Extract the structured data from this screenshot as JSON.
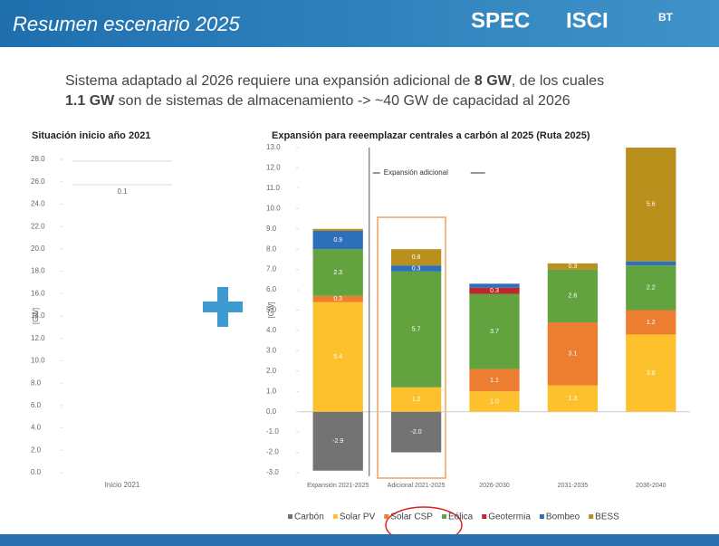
{
  "slide": {
    "title": "Resumen escenario 2025",
    "logos": [
      "SPEC",
      "ISCI",
      "BT"
    ],
    "text_1a": "Sistema adaptado al 2026 requiere una expansión adicional de ",
    "text_1b": "8 GW",
    "text_1c": ", de los cuales",
    "text_2a": "1.1 GW",
    "text_2b": " son de sistemas de almacenamiento -> ~40 GW de capacidad al 2026"
  },
  "chart_data": [
    {
      "type": "bar",
      "title": "Situación inicio año 2021",
      "ylabel": "[GW]",
      "categories": [
        "Inicio 2021"
      ],
      "annotation": "0.1",
      "ylim": [
        0,
        28
      ],
      "yticks": [
        {
          "value": 0,
          "label": "0.0"
        },
        {
          "value": 2,
          "label": "2.0"
        },
        {
          "value": 4,
          "label": "4.0"
        },
        {
          "value": 6,
          "label": "6.0"
        },
        {
          "value": 8,
          "label": "8.0"
        },
        {
          "value": 10,
          "label": "10.0"
        },
        {
          "value": 12,
          "label": "12.0"
        },
        {
          "value": 14,
          "label": "14.0"
        },
        {
          "value": 16,
          "label": "16.0"
        },
        {
          "value": 18,
          "label": "18.0"
        },
        {
          "value": 20,
          "label": "20.0"
        },
        {
          "value": 22,
          "label": "22.0"
        },
        {
          "value": 24,
          "label": "24.0"
        },
        {
          "value": 26,
          "label": "26.0"
        },
        {
          "value": 28,
          "label": "28.0"
        }
      ],
      "grid": false
    },
    {
      "type": "stacked_bar",
      "title": "Expansión para reeemplazar centrales a carbón al 2025 (Ruta 2025)",
      "ylabel": "[GW]",
      "annotation": "Expansión adicional",
      "categories": [
        "Expansión 2021-2025",
        "Adicional 2021-2025",
        "2026-2030",
        "2031-2035",
        "2036-2040"
      ],
      "series": [
        {
          "name": "Carbón",
          "color": "#737373",
          "values": [
            -2.9,
            -2.0,
            0,
            0,
            0
          ],
          "value_labels": [
            "-2.9",
            "-2.0",
            null,
            null,
            null
          ]
        },
        {
          "name": "Solar PV",
          "color": "#fcc12c",
          "values": [
            5.4,
            1.2,
            1.0,
            1.3,
            3.8
          ],
          "value_labels": [
            "5.4",
            "1.2",
            "1.0",
            "1.3",
            "3.8"
          ]
        },
        {
          "name": "Solar CSP",
          "color": "#ed7d31",
          "values": [
            0.3,
            0,
            1.1,
            3.1,
            1.2
          ],
          "value_labels": [
            "0.3",
            null,
            "1.1",
            "3.1",
            "1.2"
          ]
        },
        {
          "name": "Eólica",
          "color": "#62a33f",
          "values": [
            2.3,
            5.7,
            3.7,
            2.6,
            2.2
          ],
          "value_labels": [
            "2.3",
            "5.7",
            "3.7",
            "2.6",
            "2.2"
          ]
        },
        {
          "name": "Geotermia",
          "color": "#c0262d",
          "values": [
            0,
            0,
            0.3,
            0,
            0
          ],
          "value_labels": [
            null,
            null,
            "0.3",
            null,
            null
          ]
        },
        {
          "name": "Bombeo",
          "color": "#2e6fba",
          "values": [
            0.9,
            0.3,
            0.2,
            0,
            0.2
          ],
          "value_labels": [
            "0.9",
            "0.3",
            "0.2",
            null,
            "0.2"
          ]
        },
        {
          "name": "BESS",
          "color": "#b8901b",
          "values": [
            0.1,
            0.8,
            0,
            0.3,
            5.6
          ],
          "value_labels": [
            "0.1",
            "0.8",
            null,
            "0.3",
            "5.6"
          ]
        }
      ],
      "ylim": [
        -3,
        13
      ],
      "yticks": [
        {
          "value": -3,
          "label": "-3.0"
        },
        {
          "value": -2,
          "label": "-2.0"
        },
        {
          "value": -1,
          "label": "-1.0"
        },
        {
          "value": 0,
          "label": "0.0"
        },
        {
          "value": 1,
          "label": "1.0"
        },
        {
          "value": 2,
          "label": "2.0"
        },
        {
          "value": 3,
          "label": "3.0"
        },
        {
          "value": 4,
          "label": "4.0"
        },
        {
          "value": 5,
          "label": "5.0"
        },
        {
          "value": 6,
          "label": "6.0"
        },
        {
          "value": 7,
          "label": "7.0"
        },
        {
          "value": 8,
          "label": "8.0"
        },
        {
          "value": 9,
          "label": "9.0"
        },
        {
          "value": 10,
          "label": "10.0"
        },
        {
          "value": 11,
          "label": "11.0"
        },
        {
          "value": 12,
          "label": "12.0"
        },
        {
          "value": 13,
          "label": "13.0"
        }
      ],
      "grid": false,
      "legend": "bottom"
    }
  ]
}
